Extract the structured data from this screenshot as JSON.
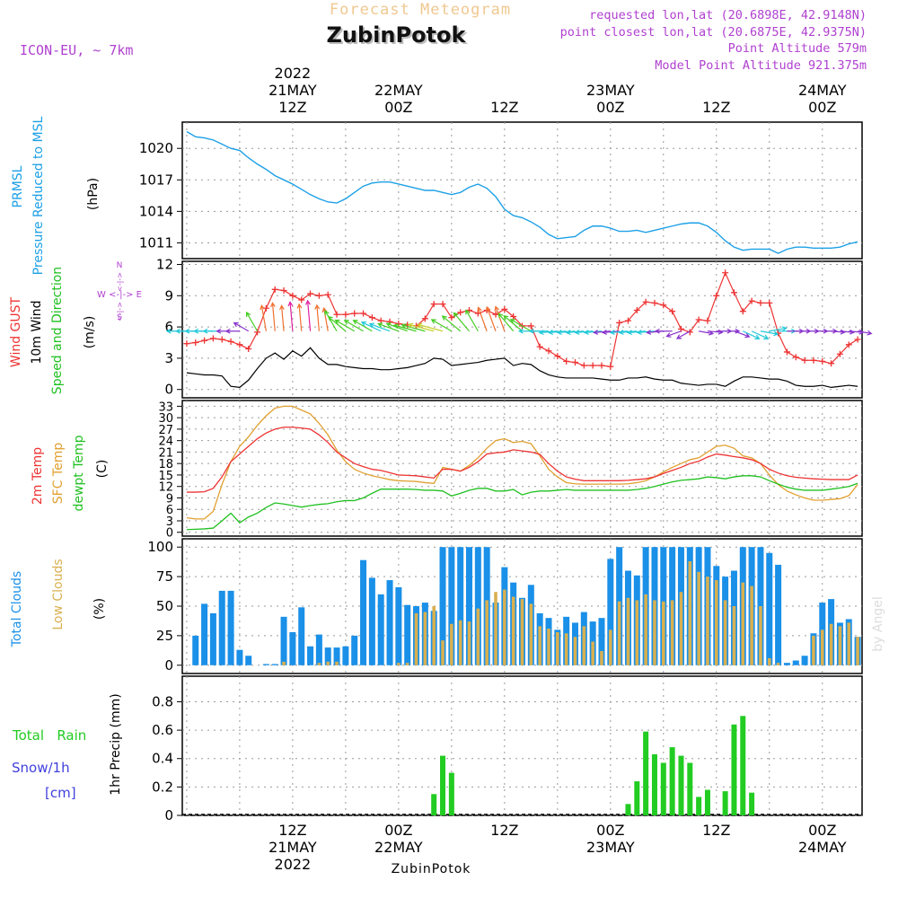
{
  "header": {
    "title_faded": "Forecast Meteogram",
    "location": "ZubinPotok",
    "model": "ICON-EU, ~ 7km",
    "requested": "requested lon,lat (20.6898E, 42.9148N)",
    "closest": "point closest lon,lat (20.6875E, 42.9375N)",
    "point_alt": "Point Altitude 579m",
    "model_alt": "Model Point Altitude 921.375m",
    "footer_location": "ZubinPotok",
    "credit": "by Angel"
  },
  "time_axis": {
    "top_labels": [
      {
        "h": 12,
        "lines": [
          "2022",
          "21MAY",
          "12Z"
        ]
      },
      {
        "h": 24,
        "lines": [
          "22MAY",
          "00Z"
        ]
      },
      {
        "h": 36,
        "lines": [
          "12Z"
        ]
      },
      {
        "h": 48,
        "lines": [
          "23MAY",
          "00Z"
        ]
      },
      {
        "h": 60,
        "lines": [
          "12Z"
        ]
      },
      {
        "h": 72,
        "lines": [
          "24MAY",
          "00Z"
        ]
      }
    ],
    "bottom_labels": [
      {
        "h": 12,
        "lines": [
          "12Z",
          "21MAY",
          "2022"
        ]
      },
      {
        "h": 24,
        "lines": [
          "00Z",
          "22MAY"
        ]
      },
      {
        "h": 36,
        "lines": [
          "12Z"
        ]
      },
      {
        "h": 48,
        "lines": [
          "00Z",
          "23MAY"
        ]
      },
      {
        "h": 60,
        "lines": [
          "12Z"
        ]
      },
      {
        "h": 72,
        "lines": [
          "00Z",
          "24MAY"
        ]
      }
    ]
  },
  "panel_labels": {
    "pressure": {
      "l1": "PRMSL",
      "l2": "Pressure Reduced to MSL",
      "unit": "(hPa)"
    },
    "wind": {
      "gust": "Wind GUST",
      "wind10": "10m Wind",
      "dir": "Speed and Direction",
      "unit": "(m/s)",
      "compass_ew": "W <-|-> E",
      "compass_n": "N",
      "compass_s": "S",
      "compass_arrow": "<-|->"
    },
    "temp": {
      "t2m": "2m Temp",
      "sfc": "SFC Temp",
      "dew": "dewpt Temp",
      "unit": "(C)"
    },
    "clouds": {
      "total": "Total Clouds",
      "low": "Low Clouds",
      "unit": "(%)"
    },
    "precip": {
      "rain": "Total   Rain",
      "snow": "Snow/1h",
      "snow_unit": "[cm]",
      "axis": "1hr Precip (mm)"
    }
  },
  "colors": {
    "pressure": "#1ca0e6",
    "gust": "#ee3333",
    "wind": "#000000",
    "t2m": "#ee3333",
    "sfc": "#e0a030",
    "dew": "#20c020",
    "total_cloud": "#1a90e8",
    "low_cloud": "#d8b050",
    "rain": "#22cc22",
    "title_faded": "#f0c890",
    "meta": "#b040d0"
  },
  "chart_data": [
    {
      "type": "line",
      "name": "pressure",
      "ylabel": "(hPa)",
      "yticks": [
        1011,
        1014,
        1017,
        1020
      ],
      "x": [
        0,
        1,
        2,
        3,
        4,
        5,
        6,
        7,
        8,
        9,
        10,
        11,
        12,
        13,
        14,
        15,
        16,
        17,
        18,
        19,
        20,
        21,
        22,
        23,
        24,
        25,
        26,
        27,
        28,
        29,
        30,
        31,
        32,
        33,
        34,
        35,
        36,
        37,
        38,
        39,
        40,
        41,
        42,
        43,
        44,
        45,
        46,
        47,
        48,
        49,
        50,
        51,
        52,
        53,
        54,
        55,
        56,
        57,
        58,
        59,
        60,
        61,
        62,
        63,
        64,
        65,
        66,
        67,
        68,
        69,
        70,
        71,
        72,
        73,
        74,
        75,
        76
      ],
      "values": [
        1021.6,
        1021.1,
        1021.0,
        1020.8,
        1020.4,
        1020.0,
        1019.8,
        1019.1,
        1018.5,
        1018.0,
        1017.4,
        1017.0,
        1016.6,
        1016.1,
        1015.6,
        1015.2,
        1014.9,
        1014.8,
        1015.2,
        1015.8,
        1016.4,
        1016.7,
        1016.8,
        1016.8,
        1016.6,
        1016.4,
        1016.2,
        1016.0,
        1016.0,
        1015.8,
        1015.6,
        1015.8,
        1016.3,
        1016.6,
        1016.2,
        1015.4,
        1014.2,
        1013.6,
        1013.4,
        1013.0,
        1012.5,
        1011.8,
        1011.4,
        1011.5,
        1011.6,
        1012.2,
        1012.6,
        1012.6,
        1012.4,
        1012.1,
        1012.1,
        1012.2,
        1012.0,
        1012.2,
        1012.4,
        1012.6,
        1012.8,
        1012.9,
        1012.9,
        1012.6,
        1012.0,
        1011.2,
        1010.6,
        1010.3,
        1010.4,
        1010.4,
        1010.4,
        1010.0,
        1010.4,
        1010.6,
        1010.6,
        1010.5,
        1010.5,
        1010.5,
        1010.6,
        1010.9,
        1011.1
      ]
    },
    {
      "type": "line",
      "name": "wind",
      "ylabel": "(m/s)",
      "yticks": [
        0,
        3,
        6,
        9,
        12
      ],
      "x": [
        0,
        1,
        2,
        3,
        4,
        5,
        6,
        7,
        8,
        9,
        10,
        11,
        12,
        13,
        14,
        15,
        16,
        17,
        18,
        19,
        20,
        21,
        22,
        23,
        24,
        25,
        26,
        27,
        28,
        29,
        30,
        31,
        32,
        33,
        34,
        35,
        36,
        37,
        38,
        39,
        40,
        41,
        42,
        43,
        44,
        45,
        46,
        47,
        48,
        49,
        50,
        51,
        52,
        53,
        54,
        55,
        56,
        57,
        58,
        59,
        60,
        61,
        62,
        63,
        64,
        65,
        66,
        67,
        68,
        69,
        70,
        71,
        72,
        73,
        74,
        75,
        76
      ],
      "gust": [
        4.4,
        4.5,
        4.7,
        4.9,
        4.8,
        4.6,
        4.3,
        3.9,
        5.5,
        7.8,
        9.6,
        9.5,
        9.0,
        8.6,
        9.2,
        9.0,
        9.1,
        7.2,
        7.2,
        7.3,
        7.3,
        6.9,
        6.6,
        6.5,
        6.3,
        6.2,
        6.1,
        6.8,
        8.2,
        8.2,
        6.9,
        7.4,
        7.6,
        7.3,
        7.6,
        7.2,
        7.7,
        7.0,
        6.1,
        6.1,
        4.1,
        3.7,
        3.2,
        2.7,
        2.6,
        2.3,
        2.3,
        2.3,
        2.2,
        6.4,
        6.6,
        7.6,
        8.4,
        8.3,
        8.1,
        7.5,
        5.8,
        5.5,
        6.7,
        6.6,
        9.0,
        11.2,
        9.3,
        7.5,
        8.5,
        8.3,
        8.3,
        5.4,
        3.6,
        3.1,
        2.8,
        2.8,
        2.7,
        2.5,
        3.4,
        4.3,
        4.8
      ],
      "wind10": [
        1.6,
        1.5,
        1.4,
        1.4,
        1.3,
        0.3,
        0.2,
        0.9,
        2.0,
        3.0,
        3.5,
        2.9,
        3.7,
        3.2,
        4.0,
        3.0,
        2.4,
        2.4,
        2.2,
        2.1,
        2.0,
        2.0,
        1.9,
        1.9,
        2.0,
        2.1,
        2.3,
        2.5,
        3.0,
        2.9,
        2.3,
        2.4,
        2.5,
        2.6,
        2.8,
        2.9,
        3.0,
        2.3,
        2.5,
        2.4,
        1.8,
        1.4,
        1.2,
        1.1,
        1.1,
        1.1,
        1.1,
        1.0,
        0.9,
        0.9,
        1.1,
        1.1,
        1.2,
        1.0,
        0.9,
        0.9,
        0.6,
        0.5,
        0.4,
        0.5,
        0.5,
        0.3,
        0.8,
        1.2,
        1.2,
        1.1,
        1.0,
        1.0,
        0.8,
        0.4,
        0.3,
        0.3,
        0.4,
        0.2,
        0.3,
        0.4,
        0.3
      ],
      "dir_deg": [
        270,
        270,
        270,
        270,
        270,
        270,
        270,
        300,
        330,
        350,
        355,
        355,
        355,
        355,
        355,
        355,
        350,
        330,
        310,
        300,
        300,
        300,
        295,
        290,
        290,
        290,
        285,
        285,
        285,
        285,
        300,
        310,
        320,
        330,
        340,
        340,
        340,
        320,
        310,
        300,
        270,
        270,
        265,
        265,
        265,
        265,
        265,
        265,
        265,
        265,
        265,
        265,
        265,
        265,
        265,
        270,
        250,
        240,
        100,
        95,
        90,
        90,
        110,
        115,
        115,
        100,
        80,
        90,
        90,
        90,
        90,
        90,
        90,
        95,
        95,
        95,
        100
      ]
    },
    {
      "type": "line",
      "name": "temperature",
      "ylabel": "(C)",
      "yticks": [
        0,
        3,
        6,
        9,
        12,
        15,
        18,
        21,
        24,
        27,
        30,
        33
      ],
      "x": [
        0,
        1,
        2,
        3,
        4,
        5,
        6,
        7,
        8,
        9,
        10,
        11,
        12,
        13,
        14,
        15,
        16,
        17,
        18,
        19,
        20,
        21,
        22,
        23,
        24,
        25,
        26,
        27,
        28,
        29,
        30,
        31,
        32,
        33,
        34,
        35,
        36,
        37,
        38,
        39,
        40,
        41,
        42,
        43,
        44,
        45,
        46,
        47,
        48,
        49,
        50,
        51,
        52,
        53,
        54,
        55,
        56,
        57,
        58,
        59,
        60,
        61,
        62,
        63,
        64,
        65,
        66,
        67,
        68,
        69,
        70,
        71,
        72,
        73,
        74,
        75,
        76
      ],
      "t2m": [
        10.5,
        10.5,
        10.6,
        11.5,
        14.5,
        18.5,
        20.5,
        22.5,
        24.5,
        26.0,
        27.0,
        27.5,
        27.5,
        27.3,
        27.0,
        25.5,
        23.5,
        21.0,
        19.5,
        18.0,
        17.2,
        16.5,
        16.2,
        15.6,
        15.0,
        14.9,
        14.8,
        14.5,
        14.2,
        16.5,
        16.5,
        16.0,
        17.0,
        18.5,
        20.5,
        20.8,
        21.0,
        21.6,
        21.3,
        21.0,
        20.4,
        18.0,
        16.0,
        14.5,
        13.9,
        13.5,
        13.5,
        13.5,
        13.5,
        13.5,
        13.6,
        13.8,
        14.0,
        14.5,
        15.4,
        16.2,
        17.0,
        18.0,
        18.6,
        19.7,
        20.5,
        20.2,
        19.8,
        19.5,
        19.0,
        18.0,
        16.5,
        15.5,
        14.8,
        14.4,
        14.2,
        14.0,
        13.9,
        13.8,
        13.8,
        13.8,
        15.0
      ],
      "sfc": [
        3.8,
        3.5,
        3.5,
        5.5,
        12.5,
        18.5,
        22.5,
        25.0,
        28.0,
        30.5,
        32.5,
        33.0,
        33.0,
        32.0,
        31.0,
        28.5,
        25.5,
        21.5,
        18.5,
        16.5,
        15.5,
        14.8,
        14.3,
        13.8,
        13.5,
        13.4,
        13.3,
        13.0,
        12.8,
        17.0,
        16.5,
        16.0,
        17.5,
        19.5,
        22.0,
        24.0,
        24.5,
        23.5,
        23.8,
        23.2,
        20.0,
        16.5,
        14.5,
        13.0,
        12.7,
        12.6,
        12.6,
        12.6,
        12.6,
        12.6,
        12.7,
        13.0,
        13.5,
        14.5,
        15.8,
        17.0,
        18.0,
        19.0,
        19.5,
        21.0,
        22.5,
        22.8,
        22.0,
        20.0,
        19.5,
        18.0,
        15.0,
        12.5,
        10.8,
        9.8,
        9.0,
        8.4,
        8.4,
        8.6,
        8.8,
        9.6,
        12.5
      ],
      "dewpt": [
        0.7,
        0.8,
        0.9,
        1.1,
        3.0,
        5.0,
        2.5,
        4.0,
        5.0,
        6.5,
        7.7,
        7.4,
        7.0,
        6.6,
        7.0,
        7.3,
        7.5,
        8.0,
        8.3,
        8.3,
        9.0,
        10.2,
        11.3,
        11.3,
        11.3,
        11.3,
        11.2,
        11.0,
        11.0,
        10.8,
        9.5,
        10.2,
        11.0,
        11.5,
        11.5,
        10.8,
        10.8,
        11.2,
        9.8,
        10.5,
        10.8,
        10.8,
        11.0,
        11.2,
        11.0,
        11.0,
        11.0,
        11.0,
        11.0,
        11.0,
        11.0,
        11.2,
        11.5,
        12.0,
        12.6,
        13.2,
        13.6,
        13.8,
        14.0,
        14.5,
        14.3,
        14.0,
        14.5,
        14.8,
        14.8,
        14.5,
        13.5,
        12.6,
        11.8,
        11.3,
        11.0,
        11.0,
        11.0,
        11.3,
        11.6,
        12.0,
        12.8
      ]
    },
    {
      "type": "bar",
      "name": "clouds",
      "ylabel": "(%)",
      "yticks": [
        0,
        25,
        50,
        75,
        100
      ],
      "x": [
        0,
        1,
        2,
        3,
        4,
        5,
        6,
        7,
        8,
        9,
        10,
        11,
        12,
        13,
        14,
        15,
        16,
        17,
        18,
        19,
        20,
        21,
        22,
        23,
        24,
        25,
        26,
        27,
        28,
        29,
        30,
        31,
        32,
        33,
        34,
        35,
        36,
        37,
        38,
        39,
        40,
        41,
        42,
        43,
        44,
        45,
        46,
        47,
        48,
        49,
        50,
        51,
        52,
        53,
        54,
        55,
        56,
        57,
        58,
        59,
        60,
        61,
        62,
        63,
        64,
        65,
        66,
        67,
        68,
        69,
        70,
        71,
        72,
        73,
        74,
        75,
        76
      ],
      "total": [
        0,
        25,
        52,
        44,
        63,
        63,
        13,
        8,
        0,
        1,
        1,
        41,
        28,
        49,
        16,
        26,
        15,
        15,
        16,
        25,
        89,
        74,
        60,
        72,
        66,
        51,
        50,
        53,
        46,
        100,
        100,
        100,
        100,
        100,
        100,
        53,
        83,
        70,
        57,
        68,
        44,
        40,
        30,
        41,
        36,
        45,
        37,
        40,
        90,
        100,
        80,
        76,
        100,
        100,
        100,
        100,
        100,
        100,
        100,
        100,
        84,
        75,
        80,
        100,
        100,
        100,
        95,
        85,
        2,
        4,
        8,
        27,
        53,
        56,
        36,
        39,
        24
      ],
      "low": [
        0,
        0,
        0,
        0,
        0,
        0,
        0,
        0,
        0,
        0,
        0,
        3,
        0,
        0,
        0,
        2,
        3,
        3,
        0,
        0,
        0,
        0,
        0,
        0,
        2,
        2,
        44,
        45,
        50,
        21,
        35,
        38,
        37,
        48,
        55,
        62,
        64,
        58,
        56,
        52,
        33,
        31,
        28,
        27,
        24,
        33,
        20,
        12,
        30,
        54,
        57,
        55,
        60,
        55,
        54,
        55,
        62,
        88,
        79,
        75,
        72,
        55,
        50,
        70,
        67,
        50,
        6,
        2,
        0,
        0,
        0,
        25,
        30,
        35,
        33,
        36,
        24
      ]
    },
    {
      "type": "bar",
      "name": "precip",
      "ylabel": "1hr Precip (mm)",
      "yticks": [
        0,
        0.2,
        0.4,
        0.6,
        0.8
      ],
      "x": [
        0,
        1,
        2,
        3,
        4,
        5,
        6,
        7,
        8,
        9,
        10,
        11,
        12,
        13,
        14,
        15,
        16,
        17,
        18,
        19,
        20,
        21,
        22,
        23,
        24,
        25,
        26,
        27,
        28,
        29,
        30,
        31,
        32,
        33,
        34,
        35,
        36,
        37,
        38,
        39,
        40,
        41,
        42,
        43,
        44,
        45,
        46,
        47,
        48,
        49,
        50,
        51,
        52,
        53,
        54,
        55,
        56,
        57,
        58,
        59,
        60,
        61,
        62,
        63,
        64,
        65,
        66,
        67,
        68,
        69,
        70,
        71,
        72,
        73,
        74,
        75,
        76
      ],
      "rain": [
        0,
        0,
        0,
        0,
        0,
        0,
        0,
        0,
        0,
        0,
        0,
        0,
        0,
        0,
        0,
        0,
        0,
        0,
        0,
        0,
        0,
        0,
        0,
        0,
        0,
        0,
        0,
        0,
        0.15,
        0.42,
        0.3,
        0,
        0,
        0,
        0,
        0,
        0,
        0,
        0,
        0,
        0,
        0,
        0,
        0,
        0,
        0,
        0,
        0,
        0,
        0,
        0.08,
        0.24,
        0.59,
        0.43,
        0.37,
        0.48,
        0.42,
        0.37,
        0.13,
        0.18,
        0,
        0.17,
        0.64,
        0.7,
        0.16,
        0,
        0,
        0,
        0,
        0,
        0,
        0,
        0,
        0,
        0,
        0,
        0
      ]
    }
  ]
}
